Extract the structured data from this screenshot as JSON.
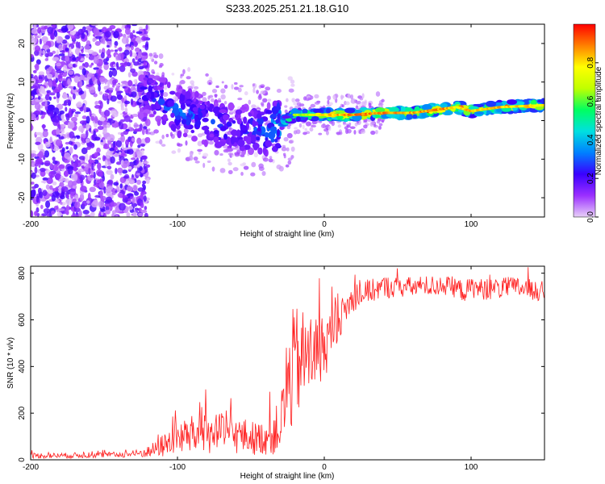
{
  "figure": {
    "title": "S233.2025.251.21.18.G10"
  },
  "chart_data": [
    {
      "type": "heatmap",
      "name": "spectrogram",
      "xlabel": "Height of straight line (km)",
      "ylabel": "Frequency (Hz)",
      "xlim": [
        -200,
        150
      ],
      "ylim": [
        -25,
        25
      ],
      "xticks": [
        -200,
        -100,
        0,
        100
      ],
      "yticks": [
        -20,
        -10,
        0,
        10,
        20
      ],
      "colorbar": {
        "label": "Normalized spectral amplitude",
        "range": [
          0,
          1
        ],
        "ticks": [
          0.0,
          0.2,
          0.4,
          0.6,
          0.8
        ],
        "tick_labels": [
          "0.0",
          "0.2",
          "0.4",
          "0.6",
          "0.8"
        ],
        "colormap": [
          "#e8d0f8",
          "#9b30ff",
          "#3a00ff",
          "#0080ff",
          "#00e0e0",
          "#00ff60",
          "#c0ff00",
          "#ffff00",
          "#ff8000",
          "#ff0000"
        ]
      },
      "dominant_frequency_track": {
        "x": [
          -120,
          -110,
          -100,
          -90,
          -80,
          -70,
          -60,
          -50,
          -40,
          -30,
          -20,
          -10,
          0,
          20,
          40,
          60,
          80,
          90,
          100,
          120,
          150
        ],
        "y": [
          7,
          5,
          2.5,
          1.5,
          0,
          -1.5,
          -2,
          -2.5,
          -2.5,
          -1,
          1.5,
          1.5,
          1.5,
          1.5,
          2,
          2,
          3,
          3.5,
          2.5,
          3.5,
          4
        ],
        "peak_amplitude": [
          0.25,
          0.3,
          0.35,
          0.3,
          0.3,
          0.3,
          0.25,
          0.3,
          0.35,
          0.5,
          0.7,
          0.75,
          0.85,
          0.95,
          0.95,
          0.9,
          0.95,
          0.85,
          0.9,
          0.9,
          0.85
        ]
      }
    },
    {
      "type": "line",
      "name": "snr",
      "xlabel": "Height of straight line (km)",
      "ylabel": "SNR (10 * v/v)",
      "xlim": [
        -200,
        150
      ],
      "ylim": [
        0,
        830
      ],
      "xticks": [
        -200,
        -100,
        0,
        100
      ],
      "yticks": [
        0,
        200,
        400,
        600,
        800
      ],
      "color": "#ff2020",
      "series": [
        {
          "name": "SNR",
          "x": [
            -200,
            -180,
            -160,
            -140,
            -130,
            -125,
            -120,
            -115,
            -110,
            -105,
            -100,
            -95,
            -90,
            -85,
            -80,
            -75,
            -70,
            -65,
            -60,
            -55,
            -50,
            -45,
            -40,
            -35,
            -30,
            -28,
            -26,
            -24,
            -22,
            -20,
            -18,
            -15,
            -12,
            -10,
            -8,
            -5,
            -2,
            0,
            3,
            6,
            10,
            14,
            18,
            22,
            26,
            30,
            35,
            40,
            50,
            60,
            70,
            80,
            90,
            95,
            100,
            110,
            120,
            130,
            140,
            150
          ],
          "y": [
            18,
            18,
            20,
            22,
            25,
            28,
            35,
            45,
            60,
            80,
            95,
            100,
            105,
            110,
            110,
            115,
            115,
            110,
            105,
            100,
            95,
            90,
            100,
            110,
            150,
            200,
            300,
            330,
            380,
            400,
            420,
            430,
            440,
            450,
            455,
            460,
            470,
            490,
            510,
            560,
            600,
            640,
            680,
            700,
            710,
            720,
            730,
            740,
            740,
            740,
            745,
            745,
            740,
            720,
            740,
            730,
            735,
            740,
            730,
            720
          ],
          "noise_amplitude": [
            12,
            12,
            12,
            12,
            15,
            20,
            25,
            35,
            50,
            60,
            70,
            80,
            85,
            90,
            90,
            90,
            85,
            85,
            80,
            80,
            75,
            70,
            80,
            90,
            120,
            160,
            240,
            250,
            260,
            260,
            240,
            220,
            200,
            190,
            180,
            170,
            150,
            140,
            120,
            100,
            80,
            70,
            60,
            55,
            50,
            50,
            50,
            50,
            45,
            45,
            45,
            45,
            45,
            45,
            45,
            45,
            45,
            45,
            45,
            45
          ]
        }
      ]
    }
  ]
}
